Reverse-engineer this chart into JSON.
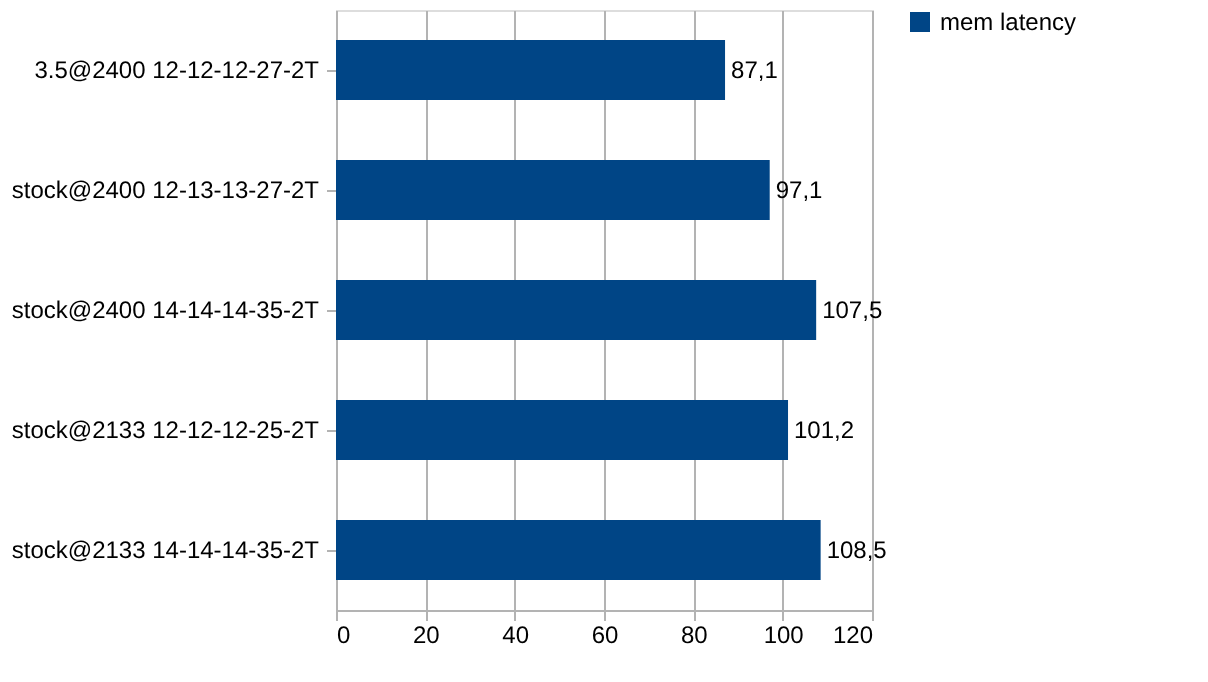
{
  "chart_data": {
    "type": "bar",
    "orientation": "horizontal",
    "categories": [
      "3.5@2400 12-12-12-27-2T",
      "stock@2400 12-13-13-27-2T",
      "stock@2400 14-14-14-35-2T",
      "stock@2133 12-12-12-25-2T",
      "stock@2133 14-14-14-35-2T"
    ],
    "series": [
      {
        "name": "mem latency",
        "color": "#004586",
        "values": [
          87.1,
          97.1,
          107.5,
          101.2,
          108.5
        ],
        "value_labels": [
          "87,1",
          "97,1",
          "107,5",
          "101,2",
          "108,5"
        ]
      }
    ],
    "xlim": [
      0,
      120
    ],
    "xticks": [
      0,
      20,
      40,
      60,
      80,
      100,
      120
    ],
    "grid": "x",
    "legend": "right"
  }
}
